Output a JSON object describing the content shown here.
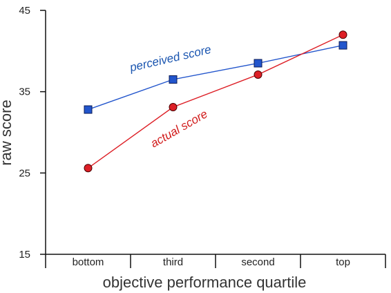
{
  "chart_data": {
    "type": "line",
    "title": "",
    "xlabel": "objective performance quartile",
    "ylabel": "raw score",
    "categories": [
      "bottom",
      "third",
      "second",
      "top"
    ],
    "ylim": [
      15,
      45
    ],
    "yticks": [
      "15",
      "25",
      "35",
      "45"
    ],
    "grid": false,
    "series": [
      {
        "name": "perceived score",
        "marker": "square",
        "color": "#2255cc",
        "label_color": "#1a55b0",
        "values": [
          32.8,
          36.5,
          38.5,
          40.7
        ]
      },
      {
        "name": "actual score",
        "marker": "circle",
        "color": "#dd1f26",
        "label_color": "#d11a1a",
        "values": [
          25.6,
          33.1,
          37.1,
          42.0
        ]
      }
    ]
  }
}
